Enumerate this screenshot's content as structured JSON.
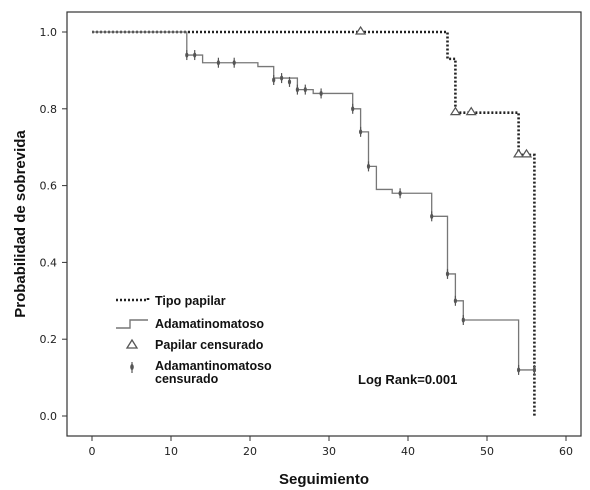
{
  "chart_data": {
    "type": "line",
    "subtype": "kaplan-meier-step",
    "xlabel": "Seguimiento",
    "ylabel": "Probabilidad de sobrevida",
    "xlim": [
      0,
      60
    ],
    "ylim": [
      0.0,
      1.0
    ],
    "xticks": [
      "0",
      "10",
      "20",
      "30",
      "40",
      "50",
      "60"
    ],
    "yticks": [
      "0.0",
      "0.2",
      "0.4",
      "0.6",
      "0.8",
      "1.0"
    ],
    "grid": false,
    "legend_position": "bottom-left",
    "annotation": "Log Rank=0.001",
    "series": [
      {
        "name": "Tipo papilar",
        "style": "dotted",
        "color": "#222222",
        "steps": [
          [
            0,
            1.0
          ],
          [
            45,
            0.93
          ],
          [
            46,
            0.79
          ],
          [
            54,
            0.68
          ],
          [
            56,
            0.0
          ]
        ],
        "censored": [
          [
            34,
            1.0
          ],
          [
            46,
            0.79
          ],
          [
            48,
            0.79
          ],
          [
            54,
            0.68
          ],
          [
            55,
            0.68
          ]
        ],
        "censored_label": "Papilar censurado",
        "censored_marker": "triangle"
      },
      {
        "name": "Adamatinomatoso",
        "style": "solid",
        "color": "#777777",
        "steps": [
          [
            0,
            1.0
          ],
          [
            12,
            0.94
          ],
          [
            14,
            0.92
          ],
          [
            21,
            0.91
          ],
          [
            23,
            0.88
          ],
          [
            26,
            0.85
          ],
          [
            28,
            0.84
          ],
          [
            33,
            0.8
          ],
          [
            34,
            0.74
          ],
          [
            35,
            0.65
          ],
          [
            36,
            0.59
          ],
          [
            38,
            0.58
          ],
          [
            43,
            0.52
          ],
          [
            45,
            0.37
          ],
          [
            46,
            0.3
          ],
          [
            47,
            0.25
          ],
          [
            54,
            0.12
          ],
          [
            56,
            0.12
          ]
        ],
        "censored": [
          [
            12,
            0.94
          ],
          [
            13,
            0.94
          ],
          [
            16,
            0.92
          ],
          [
            18,
            0.92
          ],
          [
            23,
            0.875
          ],
          [
            24,
            0.88
          ],
          [
            25,
            0.87
          ],
          [
            26,
            0.85
          ],
          [
            27,
            0.85
          ],
          [
            29,
            0.84
          ],
          [
            33,
            0.8
          ],
          [
            34,
            0.74
          ],
          [
            35,
            0.65
          ],
          [
            39,
            0.58
          ],
          [
            43,
            0.52
          ],
          [
            45,
            0.37
          ],
          [
            46,
            0.3
          ],
          [
            47,
            0.25
          ],
          [
            54,
            0.12
          ],
          [
            56,
            0.12
          ]
        ],
        "censored_label": "Adamantinomatoso censurado",
        "censored_marker": "tick"
      }
    ]
  },
  "legend": {
    "items": [
      {
        "label": "Tipo papilar"
      },
      {
        "label": "Adamatinomatoso"
      },
      {
        "label": "Papilar censurado"
      },
      {
        "label_line1": "Adamantinomatoso",
        "label_line2": "censurado"
      }
    ]
  }
}
